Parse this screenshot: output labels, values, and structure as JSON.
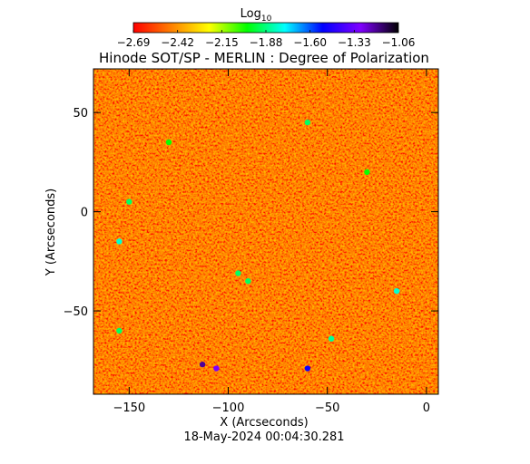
{
  "chart_data": {
    "type": "heatmap",
    "title": "Hinode SOT/SP - MERLIN : Degree of Polarization",
    "xlabel": "X (Arcseconds)",
    "ylabel": "Y (Arcseconds)",
    "footer": "18-May-2024 00:04:30.281",
    "colorbar": {
      "label": "Log",
      "label_subscript": "10",
      "range": [
        -2.69,
        -1.06
      ],
      "ticks": [
        "-2.69",
        "-2.42",
        "-2.15",
        "-1.88",
        "-1.60",
        "-1.33",
        "-1.06"
      ],
      "colormap": [
        "#ff0000",
        "#ff8000",
        "#ffff00",
        "#00ff00",
        "#00ffff",
        "#0000ff",
        "#8000ff",
        "#000000"
      ]
    },
    "xlim": [
      -168,
      6
    ],
    "ylim": [
      -92,
      72
    ],
    "x_ticks": [
      -150,
      -100,
      -50,
      0
    ],
    "y_ticks": [
      -50,
      0,
      50
    ],
    "x_tick_labels": [
      "−150",
      "−100",
      "−50",
      "0"
    ],
    "y_tick_labels": [
      "−50",
      "0",
      "50"
    ],
    "background_level": -2.6,
    "features": [
      {
        "x": -113,
        "y": -77,
        "level": -1.2
      },
      {
        "x": -106,
        "y": -79,
        "level": -1.3
      },
      {
        "x": -60,
        "y": -79,
        "level": -1.5
      },
      {
        "x": -155,
        "y": -15,
        "level": -1.8
      },
      {
        "x": -90,
        "y": -35,
        "level": -1.9
      },
      {
        "x": -95,
        "y": -31,
        "level": -1.9
      },
      {
        "x": -15,
        "y": -40,
        "level": -1.8
      },
      {
        "x": -48,
        "y": -64,
        "level": -1.85
      },
      {
        "x": -150,
        "y": 5,
        "level": -1.9
      },
      {
        "x": -60,
        "y": 45,
        "level": -1.9
      },
      {
        "x": -130,
        "y": 35,
        "level": -2.0
      },
      {
        "x": -30,
        "y": 20,
        "level": -2.0
      },
      {
        "x": -155,
        "y": -60,
        "level": -1.9
      }
    ],
    "grid": false
  }
}
